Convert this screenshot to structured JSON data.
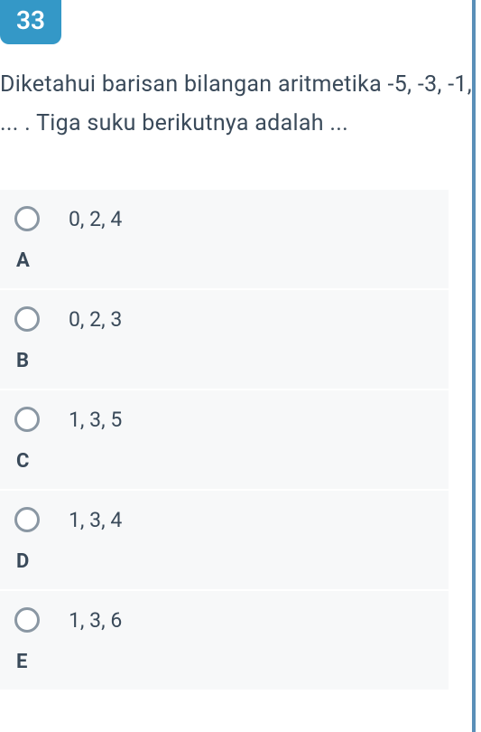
{
  "question": {
    "number": "33",
    "text": "Diketahui barisan bilangan aritmetika -5, -3, -1, ... . Tiga suku berikutnya adalah ..."
  },
  "options": [
    {
      "letter": "A",
      "text": "0, 2, 4"
    },
    {
      "letter": "B",
      "text": "0, 2, 3"
    },
    {
      "letter": "C",
      "text": "1, 3, 5"
    },
    {
      "letter": "D",
      "text": "1, 3, 4"
    },
    {
      "letter": "E",
      "text": "1, 3, 6"
    }
  ],
  "colors": {
    "badge_bg": "#3498c7",
    "badge_text": "#ffffff",
    "body_text": "#3a4a5a",
    "option_bg": "#f7f8f9",
    "radio_border": "#8a97a3",
    "right_border": "#5a8fb8"
  }
}
